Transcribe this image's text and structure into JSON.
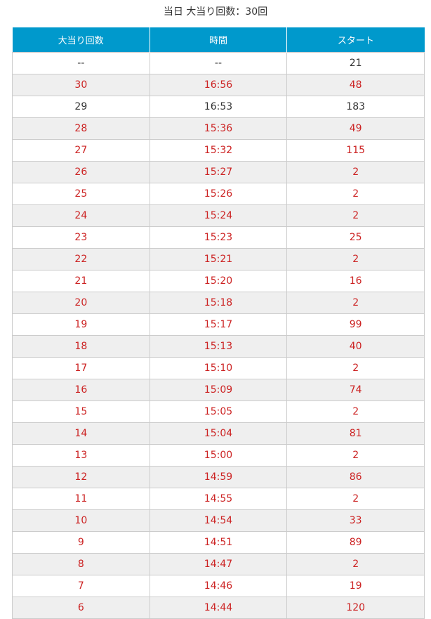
{
  "title": "当日 大当り回数：30回",
  "headers": [
    "大当り回数",
    "時間",
    "スタート"
  ],
  "accent": "#0099cc",
  "highlight_color": "#cc2222",
  "rows": [
    {
      "count": "--",
      "time": "--",
      "start": "21",
      "red": false
    },
    {
      "count": "30",
      "time": "16:56",
      "start": "48",
      "red": true
    },
    {
      "count": "29",
      "time": "16:53",
      "start": "183",
      "red": false
    },
    {
      "count": "28",
      "time": "15:36",
      "start": "49",
      "red": true
    },
    {
      "count": "27",
      "time": "15:32",
      "start": "115",
      "red": true
    },
    {
      "count": "26",
      "time": "15:27",
      "start": "2",
      "red": true
    },
    {
      "count": "25",
      "time": "15:26",
      "start": "2",
      "red": true
    },
    {
      "count": "24",
      "time": "15:24",
      "start": "2",
      "red": true
    },
    {
      "count": "23",
      "time": "15:23",
      "start": "25",
      "red": true
    },
    {
      "count": "22",
      "time": "15:21",
      "start": "2",
      "red": true
    },
    {
      "count": "21",
      "time": "15:20",
      "start": "16",
      "red": true
    },
    {
      "count": "20",
      "time": "15:18",
      "start": "2",
      "red": true
    },
    {
      "count": "19",
      "time": "15:17",
      "start": "99",
      "red": true
    },
    {
      "count": "18",
      "time": "15:13",
      "start": "40",
      "red": true
    },
    {
      "count": "17",
      "time": "15:10",
      "start": "2",
      "red": true
    },
    {
      "count": "16",
      "time": "15:09",
      "start": "74",
      "red": true
    },
    {
      "count": "15",
      "time": "15:05",
      "start": "2",
      "red": true
    },
    {
      "count": "14",
      "time": "15:04",
      "start": "81",
      "red": true
    },
    {
      "count": "13",
      "time": "15:00",
      "start": "2",
      "red": true
    },
    {
      "count": "12",
      "time": "14:59",
      "start": "86",
      "red": true
    },
    {
      "count": "11",
      "time": "14:55",
      "start": "2",
      "red": true
    },
    {
      "count": "10",
      "time": "14:54",
      "start": "33",
      "red": true
    },
    {
      "count": "9",
      "time": "14:51",
      "start": "89",
      "red": true
    },
    {
      "count": "8",
      "time": "14:47",
      "start": "2",
      "red": true
    },
    {
      "count": "7",
      "time": "14:46",
      "start": "19",
      "red": true
    },
    {
      "count": "6",
      "time": "14:44",
      "start": "120",
      "red": true
    }
  ]
}
